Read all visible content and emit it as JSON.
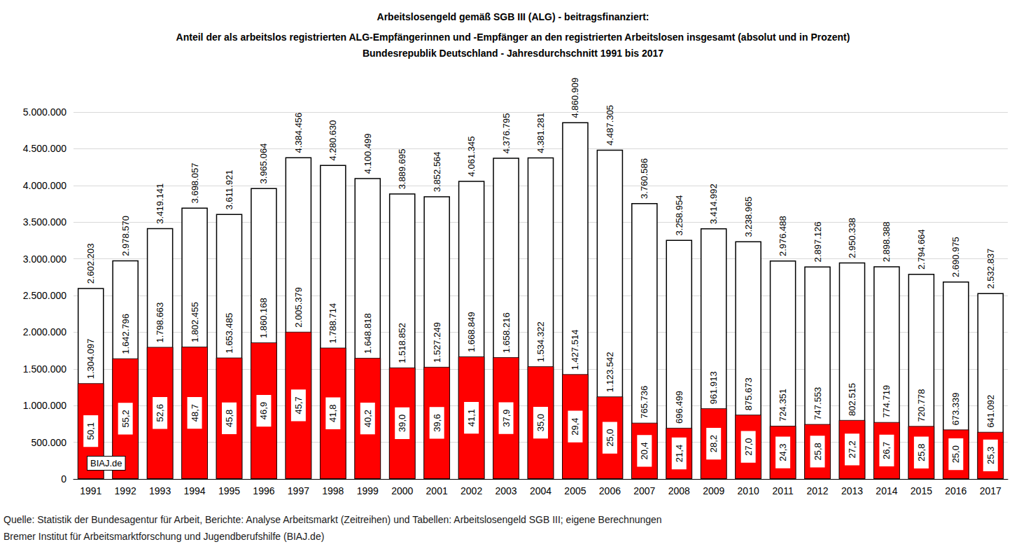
{
  "chart_data": {
    "type": "bar",
    "title": "Arbeitslosengeld gemäß SGB III (ALG) - beitragsfinanziert:",
    "subtitle": [
      "Anteil der als arbeitslos registrierten ALG-Empfängerinnen und -Empfänger an den registrierten Arbeitslosen insgesamt (absolut und in Prozent)",
      "Bundesrepublik Deutschland - Jahresdurchschnitt 1991 bis 2017"
    ],
    "annotations": [
      "BIAJ.de"
    ],
    "source": [
      "Quelle: Statistik der Bundesagentur für Arbeit, Berichte: Analyse Arbeitsmarkt (Zeitreihen) und Tabellen: Arbeitslosengeld SGB III; eigene Berechnungen",
      "Bremer Institut für Arbeitsmarktforschung und Jugendberufshilfe (BIAJ.de)"
    ],
    "categories": [
      "1991",
      "1992",
      "1993",
      "1994",
      "1995",
      "1996",
      "1997",
      "1998",
      "1999",
      "2000",
      "2001",
      "2002",
      "2003",
      "2004",
      "2005",
      "2006",
      "2007",
      "2008",
      "2009",
      "2010",
      "2011",
      "2012",
      "2013",
      "2014",
      "2015",
      "2016",
      "2017"
    ],
    "series": [
      {
        "color": "#ffffff",
        "values": [
          2602203,
          2978570,
          3419141,
          3698057,
          3611921,
          3965064,
          4384456,
          4280630,
          4100499,
          3889695,
          3852564,
          4061345,
          4376795,
          4381281,
          4860909,
          4487305,
          3760586,
          3258954,
          3414992,
          3238965,
          2976488,
          2897126,
          2950338,
          2898388,
          2794664,
          2690975,
          2532837
        ],
        "value_labels": [
          "2.602.203",
          "2.978.570",
          "3.419.141",
          "3.698.057",
          "3.611.921",
          "3.965.064",
          "4.384.456",
          "4.280.630",
          "4.100.499",
          "3.889.695",
          "3.852.564",
          "4.061.345",
          "4.376.795",
          "4.381.281",
          "4.860.909",
          "4.487.305",
          "3.760.586",
          "3.258.954",
          "3.414.992",
          "3.238.965",
          "2.976.488",
          "2.897.126",
          "2.950.338",
          "2.898.388",
          "2.794.664",
          "2.690.975",
          "2.532.837"
        ]
      },
      {
        "color": "#ff0000",
        "values": [
          1304097,
          1642796,
          1798663,
          1802455,
          1653485,
          1860168,
          2005379,
          1788714,
          1648818,
          1518852,
          1527249,
          1668849,
          1658216,
          1534322,
          1427514,
          1123542,
          765736,
          696499,
          961913,
          875673,
          724351,
          747553,
          802515,
          774719,
          720778,
          673339,
          641092
        ],
        "value_labels": [
          "1.304.097",
          "1.642.796",
          "1.798.663",
          "1.802.455",
          "1.653.485",
          "1.860.168",
          "2.005.379",
          "1.788.714",
          "1.648.818",
          "1.518.852",
          "1.527.249",
          "1.668.849",
          "1.658.216",
          "1.534.322",
          "1.427.514",
          "1.123.542",
          "765.736",
          "696.499",
          "961.913",
          "875.673",
          "724.351",
          "747.553",
          "802.515",
          "774.719",
          "720.778",
          "673.339",
          "641.092"
        ],
        "shares": [
          50.1,
          55.2,
          52.6,
          48.7,
          45.8,
          46.9,
          45.7,
          41.8,
          40.2,
          39.0,
          39.6,
          41.1,
          37.9,
          35.0,
          29.4,
          25.0,
          20.4,
          21.4,
          28.2,
          27.0,
          24.3,
          25.8,
          27.2,
          26.7,
          25.8,
          25.0,
          25.3
        ],
        "share_labels": [
          "50,1",
          "55,2",
          "52,6",
          "48,7",
          "45,8",
          "46,9",
          "45,7",
          "41,8",
          "40,2",
          "39,0",
          "39,6",
          "41,1",
          "37,9",
          "35,0",
          "29,4",
          "25,0",
          "20,4",
          "21,4",
          "28,2",
          "27,0",
          "24,3",
          "25,8",
          "27,2",
          "26,7",
          "25,8",
          "25,0",
          "25,3"
        ]
      }
    ],
    "ylim": [
      0,
      5000000
    ],
    "yticks": [
      {
        "value": 0,
        "label": "0"
      },
      {
        "value": 500000,
        "label": "500.000"
      },
      {
        "value": 1000000,
        "label": "1.000.000"
      },
      {
        "value": 1500000,
        "label": "1.500.000"
      },
      {
        "value": 2000000,
        "label": "2.000.000"
      },
      {
        "value": 2500000,
        "label": "2.500.000"
      },
      {
        "value": 3000000,
        "label": "3.000.000"
      },
      {
        "value": 3500000,
        "label": "3.500.000"
      },
      {
        "value": 4000000,
        "label": "4.000.000"
      },
      {
        "value": 4500000,
        "label": "4.500.000"
      },
      {
        "value": 5000000,
        "label": "5.000.000"
      }
    ],
    "grid": true,
    "data_labels": true
  }
}
